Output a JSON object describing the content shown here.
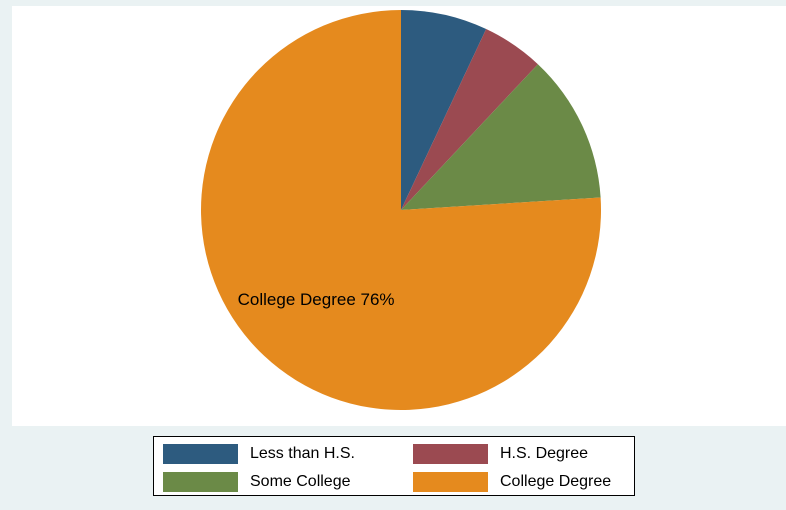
{
  "chart_data": {
    "type": "pie",
    "categories": [
      "Less than H.S.",
      "H.S. Degree",
      "Some College",
      "College Degree"
    ],
    "values": [
      7,
      5,
      12,
      76
    ],
    "colors": [
      "#2d5b7f",
      "#9b4a51",
      "#6b8a47",
      "#e58a1e"
    ],
    "slice_labels": [
      "",
      "",
      "",
      "College Degree 76%"
    ],
    "start": "12 o'clock",
    "direction": "clockwise",
    "legend_position": "bottom",
    "legend_columns": 2
  }
}
